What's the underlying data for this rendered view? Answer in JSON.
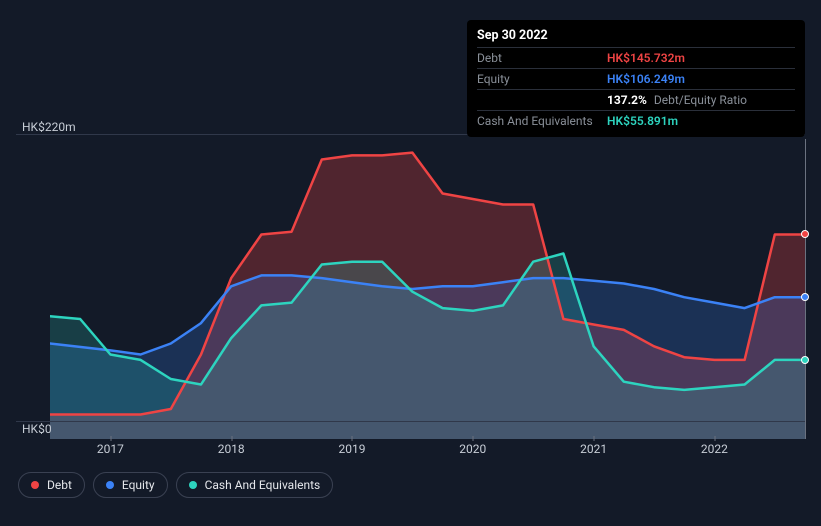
{
  "tooltip": {
    "date": "Sep 30 2022",
    "rows": [
      {
        "label": "Debt",
        "value": "HK$145.732m",
        "color": "#ef4444"
      },
      {
        "label": "Equity",
        "value": "HK$106.249m",
        "color": "#3b82f6"
      },
      {
        "label": "",
        "ratio": "137.2%",
        "ratio_label": "Debt/Equity Ratio"
      },
      {
        "label": "Cash And Equivalents",
        "value": "HK$55.891m",
        "color": "#2dd4bf"
      }
    ]
  },
  "chart": {
    "background": "#131a28",
    "grid_color": "#30384a",
    "axis_text_color": "#c7cdd6",
    "y_min": 0,
    "y_max": 220,
    "y_top_label": "HK$220m",
    "y_bottom_label": "HK$0",
    "x_min": 2016.5,
    "x_max": 2022.75,
    "x_ticks": [
      {
        "x": 2017,
        "label": "2017"
      },
      {
        "x": 2018,
        "label": "2018"
      },
      {
        "x": 2019,
        "label": "2019"
      },
      {
        "x": 2020,
        "label": "2020"
      },
      {
        "x": 2021,
        "label": "2021"
      },
      {
        "x": 2022,
        "label": "2022"
      }
    ],
    "series": [
      {
        "name": "Debt",
        "stroke": "#ef4444",
        "fill": "rgba(239,68,68,0.28)",
        "stroke_width": 2.5,
        "points": [
          [
            2016.5,
            18
          ],
          [
            2017.0,
            18
          ],
          [
            2017.25,
            18
          ],
          [
            2017.5,
            22
          ],
          [
            2017.75,
            62
          ],
          [
            2018.0,
            118
          ],
          [
            2018.25,
            150
          ],
          [
            2018.5,
            152
          ],
          [
            2018.75,
            205
          ],
          [
            2019.0,
            208
          ],
          [
            2019.25,
            208
          ],
          [
            2019.5,
            210
          ],
          [
            2019.75,
            180
          ],
          [
            2020.0,
            176
          ],
          [
            2020.25,
            172
          ],
          [
            2020.5,
            172
          ],
          [
            2020.75,
            88
          ],
          [
            2021.0,
            84
          ],
          [
            2021.25,
            80
          ],
          [
            2021.5,
            68
          ],
          [
            2021.75,
            60
          ],
          [
            2022.0,
            58
          ],
          [
            2022.25,
            58
          ],
          [
            2022.5,
            150
          ],
          [
            2022.75,
            150
          ]
        ]
      },
      {
        "name": "Equity",
        "stroke": "#3b82f6",
        "fill": "rgba(59,130,246,0.22)",
        "stroke_width": 2.5,
        "points": [
          [
            2016.5,
            70
          ],
          [
            2017.0,
            65
          ],
          [
            2017.25,
            62
          ],
          [
            2017.5,
            70
          ],
          [
            2017.75,
            85
          ],
          [
            2018.0,
            112
          ],
          [
            2018.25,
            120
          ],
          [
            2018.5,
            120
          ],
          [
            2018.75,
            118
          ],
          [
            2019.0,
            115
          ],
          [
            2019.25,
            112
          ],
          [
            2019.5,
            110
          ],
          [
            2019.75,
            112
          ],
          [
            2020.0,
            112
          ],
          [
            2020.25,
            115
          ],
          [
            2020.5,
            118
          ],
          [
            2020.75,
            118
          ],
          [
            2021.0,
            116
          ],
          [
            2021.25,
            114
          ],
          [
            2021.5,
            110
          ],
          [
            2021.75,
            104
          ],
          [
            2022.0,
            100
          ],
          [
            2022.25,
            96
          ],
          [
            2022.5,
            104
          ],
          [
            2022.75,
            104
          ]
        ]
      },
      {
        "name": "Cash And Equivalents",
        "stroke": "#2dd4bf",
        "fill": "rgba(45,212,191,0.20)",
        "stroke_width": 2.5,
        "points": [
          [
            2016.5,
            90
          ],
          [
            2016.75,
            88
          ],
          [
            2017.0,
            62
          ],
          [
            2017.25,
            58
          ],
          [
            2017.5,
            44
          ],
          [
            2017.75,
            40
          ],
          [
            2018.0,
            74
          ],
          [
            2018.25,
            98
          ],
          [
            2018.5,
            100
          ],
          [
            2018.75,
            128
          ],
          [
            2019.0,
            130
          ],
          [
            2019.25,
            130
          ],
          [
            2019.5,
            108
          ],
          [
            2019.75,
            96
          ],
          [
            2020.0,
            94
          ],
          [
            2020.25,
            98
          ],
          [
            2020.5,
            130
          ],
          [
            2020.75,
            136
          ],
          [
            2021.0,
            68
          ],
          [
            2021.25,
            42
          ],
          [
            2021.5,
            38
          ],
          [
            2021.75,
            36
          ],
          [
            2022.0,
            38
          ],
          [
            2022.25,
            40
          ],
          [
            2022.5,
            58
          ],
          [
            2022.75,
            58
          ]
        ]
      }
    ],
    "cursor_x": 2022.75,
    "end_markers": [
      {
        "color": "#ef4444",
        "y": 150
      },
      {
        "color": "#3b82f6",
        "y": 104
      },
      {
        "color": "#2dd4bf",
        "y": 58
      }
    ]
  },
  "legend": [
    {
      "label": "Debt",
      "color": "#ef4444"
    },
    {
      "label": "Equity",
      "color": "#3b82f6"
    },
    {
      "label": "Cash And Equivalents",
      "color": "#2dd4bf"
    }
  ]
}
